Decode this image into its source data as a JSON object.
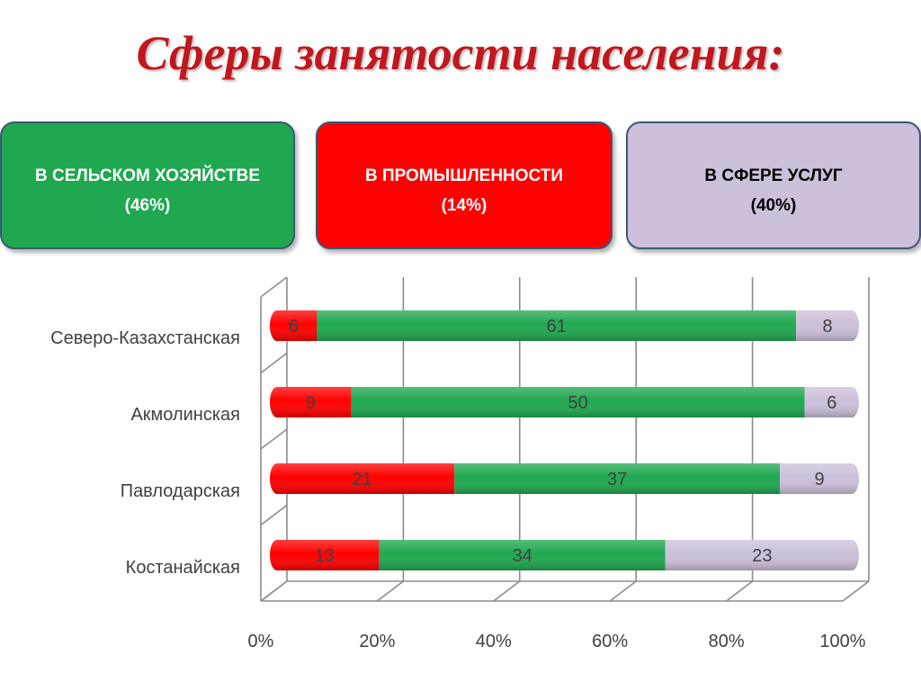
{
  "title": "Сферы занятости населения:",
  "boxes": [
    {
      "label": "В СЕЛЬСКОМ ХОЗЯЙСТВЕ",
      "value": "(46%)",
      "bg": "#1fa84f",
      "text_color": "#ffffff"
    },
    {
      "label": "В ПРОМЫШЛЕННОСТИ",
      "value": "(14%)",
      "bg": "#ff0000",
      "text_color": "#ffffff"
    },
    {
      "label": "В СФЕРЕ УСЛУГ",
      "value": "(40%)",
      "bg": "#ccc0da",
      "text_color": "#000000"
    }
  ],
  "chart_data": {
    "type": "bar",
    "orientation": "horizontal",
    "stacking": "percent",
    "categories": [
      "Северо-Казахстанская",
      "Акмолинская",
      "Павлодарская",
      "Костанайская"
    ],
    "series": [
      {
        "values": [
          6,
          9,
          21,
          13
        ],
        "color": "#ff0000"
      },
      {
        "values": [
          61,
          50,
          37,
          34
        ],
        "color": "#1fa84f"
      },
      {
        "values": [
          8,
          6,
          9,
          23
        ],
        "color": "#ccc0da"
      }
    ],
    "x_ticks": [
      "0%",
      "20%",
      "40%",
      "60%",
      "80%",
      "100%"
    ],
    "xlim": [
      0,
      100
    ],
    "grid": true,
    "legend": "none"
  }
}
